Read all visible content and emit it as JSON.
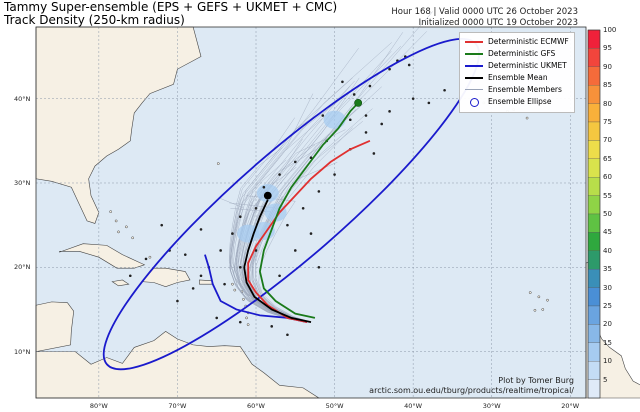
{
  "title": {
    "line1": "Tammy Super-ensemble (EPS + GEFS + UKMET + CMC)",
    "line2": "Track Density (250-km radius)"
  },
  "info": {
    "line1": "Hour 168 | Valid 0000 UTC 26 October 2023",
    "line2": "Initialized 0000 UTC 19 October 2023"
  },
  "credit": {
    "line1": "Plot by Tomer Burg",
    "line2": "arctic.som.ou.edu/tburg/products/realtime/tropical/"
  },
  "legend": [
    {
      "label": "Deterministic ECMWF",
      "color": "#e03030",
      "style": "line"
    },
    {
      "label": "Deterministic GFS",
      "color": "#1a7a1a",
      "style": "line"
    },
    {
      "label": "Deterministic UKMET",
      "color": "#1a1acc",
      "style": "line"
    },
    {
      "label": "Ensemble Mean",
      "color": "#000000",
      "style": "line"
    },
    {
      "label": "Ensemble Members",
      "color": "#9aa4b8",
      "style": "thin"
    },
    {
      "label": "Ensemble Ellipse",
      "color": "#1a1acc",
      "style": "circle"
    }
  ],
  "lon_labels": [
    "80°W",
    "70°W",
    "60°W",
    "50°W",
    "40°W",
    "30°W",
    "20°W"
  ],
  "lat_labels": [
    "40°N",
    "30°N",
    "20°N",
    "10°N"
  ],
  "colorbar": {
    "labels": [
      "100",
      "95",
      "90",
      "85",
      "80",
      "75",
      "70",
      "65",
      "60",
      "55",
      "50",
      "45",
      "40",
      "35",
      "30",
      "25",
      "20",
      "15",
      "10",
      "5"
    ],
    "colors": [
      "#f0213a",
      "#f2453c",
      "#f56b3a",
      "#f7913a",
      "#f9b03a",
      "#f5c740",
      "#eedd4a",
      "#d9e34c",
      "#b8de4a",
      "#8fd446",
      "#5fc243",
      "#2fa83e",
      "#2d9a6a",
      "#3a8fb8",
      "#4a8fd6",
      "#6aa4e0",
      "#88b8e8",
      "#a6cbf0",
      "#c4dcf5",
      "#dfeaf8"
    ]
  },
  "tracks": {
    "ecmwf": {
      "color": "#e03030",
      "lonlat": [
        [
          -53.5,
          13.5
        ],
        [
          -56,
          14
        ],
        [
          -58.5,
          15.5
        ],
        [
          -60,
          17
        ],
        [
          -61,
          18.5
        ],
        [
          -61,
          20.5
        ],
        [
          -60,
          22.5
        ],
        [
          -58.5,
          24.5
        ],
        [
          -57,
          26.5
        ],
        [
          -55,
          28.5
        ],
        [
          -53,
          30.5
        ],
        [
          -50.5,
          32.5
        ],
        [
          -48,
          34
        ],
        [
          -45.5,
          35
        ]
      ]
    },
    "gfs": {
      "color": "#1a7a1a",
      "lonlat": [
        [
          -52.5,
          14
        ],
        [
          -55,
          14.5
        ],
        [
          -57.5,
          16
        ],
        [
          -59,
          17.5
        ],
        [
          -59.5,
          19.5
        ],
        [
          -59,
          22
        ],
        [
          -58,
          24.5
        ],
        [
          -57,
          27
        ],
        [
          -55.5,
          29.5
        ],
        [
          -53.5,
          32
        ],
        [
          -51.5,
          34.5
        ],
        [
          -49.5,
          36.5
        ],
        [
          -48,
          38.5
        ],
        [
          -47,
          39.5
        ]
      ]
    },
    "ukmet": {
      "color": "#1a1acc",
      "lonlat": [
        [
          -53.5,
          13.5
        ],
        [
          -56,
          14
        ],
        [
          -59.5,
          14.3
        ],
        [
          -62.5,
          15
        ],
        [
          -64.5,
          16
        ],
        [
          -65.5,
          18
        ],
        [
          -66,
          20
        ],
        [
          -66.5,
          21.5
        ]
      ]
    },
    "mean": {
      "color": "#000000",
      "lonlat": [
        [
          -53,
          13.5
        ],
        [
          -55.5,
          14
        ],
        [
          -58,
          15
        ],
        [
          -60.2,
          16.5
        ],
        [
          -61.2,
          18.2
        ],
        [
          -61.5,
          20
        ],
        [
          -61,
          22
        ],
        [
          -60.3,
          24
        ],
        [
          -59.5,
          26
        ],
        [
          -58.5,
          28
        ]
      ]
    }
  },
  "ellipse": {
    "center": [
      -55.5,
      27.5
    ],
    "semi_major_deg": 30,
    "semi_minor_deg": 6.5,
    "rotation_deg": 41,
    "color": "#1a1acc"
  },
  "density_blobs": [
    [
      -61,
      24
    ],
    [
      -59,
      24.3
    ],
    [
      -58.5,
      28.8
    ],
    [
      -50,
      37.5
    ],
    [
      -57.5,
      26.5
    ]
  ],
  "final_points": [
    [
      -47,
      39.5
    ],
    [
      -58.5,
      28.5
    ]
  ],
  "member_points": [
    [
      -42,
      44.5
    ],
    [
      -41,
      45
    ],
    [
      -40.5,
      44
    ],
    [
      -43,
      43.5
    ],
    [
      -49,
      42
    ],
    [
      -47.5,
      40.5
    ],
    [
      -44,
      37
    ],
    [
      -46,
      38
    ],
    [
      -43,
      38.5
    ],
    [
      -51,
      35
    ],
    [
      -53,
      33
    ],
    [
      -55,
      32.5
    ],
    [
      -57,
      31
    ],
    [
      -59,
      29.5
    ],
    [
      -60,
      27
    ],
    [
      -62,
      26
    ],
    [
      -63,
      24
    ],
    [
      -64.5,
      22
    ],
    [
      -66,
      20
    ],
    [
      -67,
      19
    ],
    [
      -69,
      21.5
    ],
    [
      -71,
      22
    ],
    [
      -74,
      21
    ],
    [
      -76,
      19
    ],
    [
      -70,
      16
    ],
    [
      -65,
      14
    ],
    [
      -62,
      13.5
    ],
    [
      -58,
      13
    ],
    [
      -56,
      12
    ],
    [
      -60,
      22
    ],
    [
      -56,
      25
    ],
    [
      -54,
      27
    ],
    [
      -52,
      29
    ],
    [
      -50,
      31
    ],
    [
      -48,
      34
    ],
    [
      -46,
      36
    ],
    [
      -45,
      33.5
    ],
    [
      -55,
      22
    ],
    [
      -62,
      20
    ],
    [
      -64,
      18
    ],
    [
      -68,
      17.5
    ],
    [
      -72,
      25
    ],
    [
      -67,
      24.5
    ],
    [
      -57,
      19
    ],
    [
      -52,
      20
    ],
    [
      -53,
      24
    ],
    [
      -40,
      40
    ],
    [
      -36,
      41
    ],
    [
      -38,
      39.5
    ],
    [
      -48,
      37.5
    ],
    [
      -51.5,
      38
    ],
    [
      -45.5,
      41.5
    ]
  ]
}
